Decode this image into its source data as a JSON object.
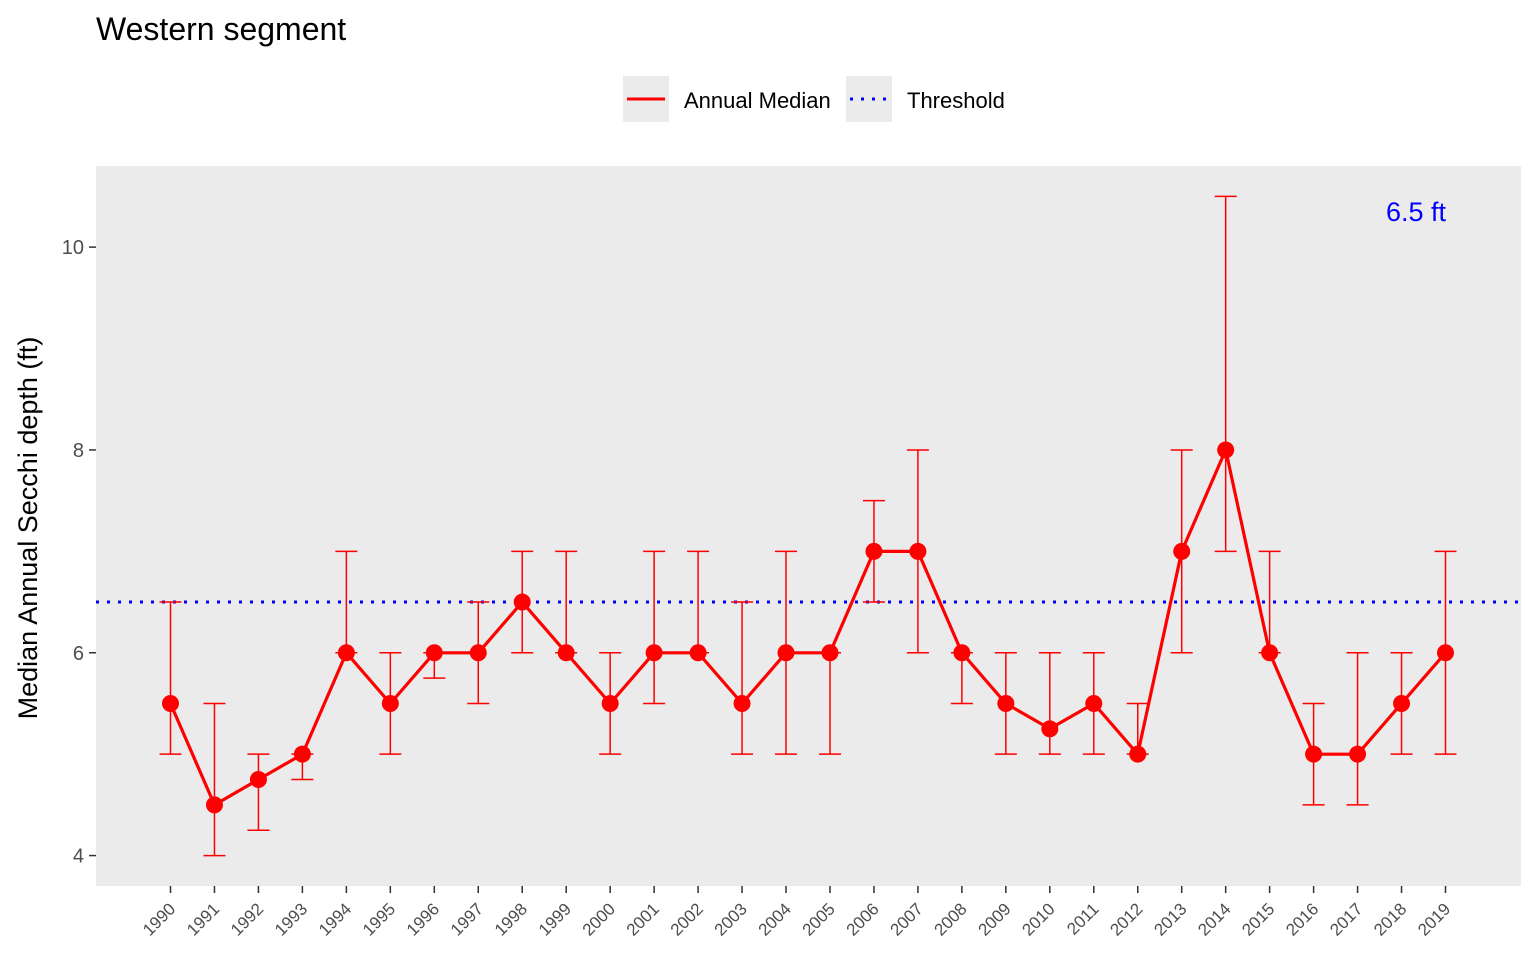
{
  "chart_data": {
    "type": "line",
    "title": "Western segment",
    "xlabel": "",
    "ylabel": "Median Annual Secchi depth (ft)",
    "ylim": [
      3.7,
      10.8
    ],
    "yticks": [
      "4",
      "6",
      "8",
      "10"
    ],
    "categories": [
      "1990",
      "1991",
      "1992",
      "1993",
      "1994",
      "1995",
      "1996",
      "1997",
      "1998",
      "1999",
      "2000",
      "2001",
      "2002",
      "2003",
      "2004",
      "2005",
      "2006",
      "2007",
      "2008",
      "2009",
      "2010",
      "2011",
      "2012",
      "2013",
      "2014",
      "2015",
      "2016",
      "2017",
      "2018",
      "2019"
    ],
    "legend_position": "top",
    "grid": false,
    "series": [
      {
        "name": "Annual Median",
        "color": "#ff0000",
        "values": [
          5.5,
          4.5,
          4.75,
          5.0,
          6.0,
          5.5,
          6.0,
          6.0,
          6.5,
          6.0,
          5.5,
          6.0,
          6.0,
          5.5,
          6.0,
          6.0,
          7.0,
          7.0,
          6.0,
          5.5,
          5.25,
          5.5,
          5.0,
          7.0,
          8.0,
          6.0,
          5.0,
          5.0,
          5.5,
          6.0
        ],
        "lower": [
          5.0,
          4.0,
          4.25,
          4.75,
          6.0,
          5.0,
          5.75,
          5.5,
          6.0,
          6.0,
          5.0,
          5.5,
          6.0,
          5.0,
          5.0,
          5.0,
          6.5,
          6.0,
          5.5,
          5.0,
          5.0,
          5.0,
          5.0,
          6.0,
          7.0,
          6.0,
          4.5,
          4.5,
          5.0,
          5.0
        ],
        "upper": [
          6.5,
          5.5,
          5.0,
          5.0,
          7.0,
          6.0,
          6.0,
          6.5,
          7.0,
          7.0,
          6.0,
          7.0,
          7.0,
          6.5,
          7.0,
          6.0,
          7.5,
          8.0,
          6.0,
          6.0,
          6.0,
          6.0,
          5.5,
          8.0,
          10.5,
          7.0,
          5.5,
          6.0,
          6.0,
          7.0
        ]
      }
    ],
    "threshold": {
      "name": "Threshold",
      "value": 6.5,
      "color": "#0000ff",
      "label": "6.5 ft"
    }
  }
}
